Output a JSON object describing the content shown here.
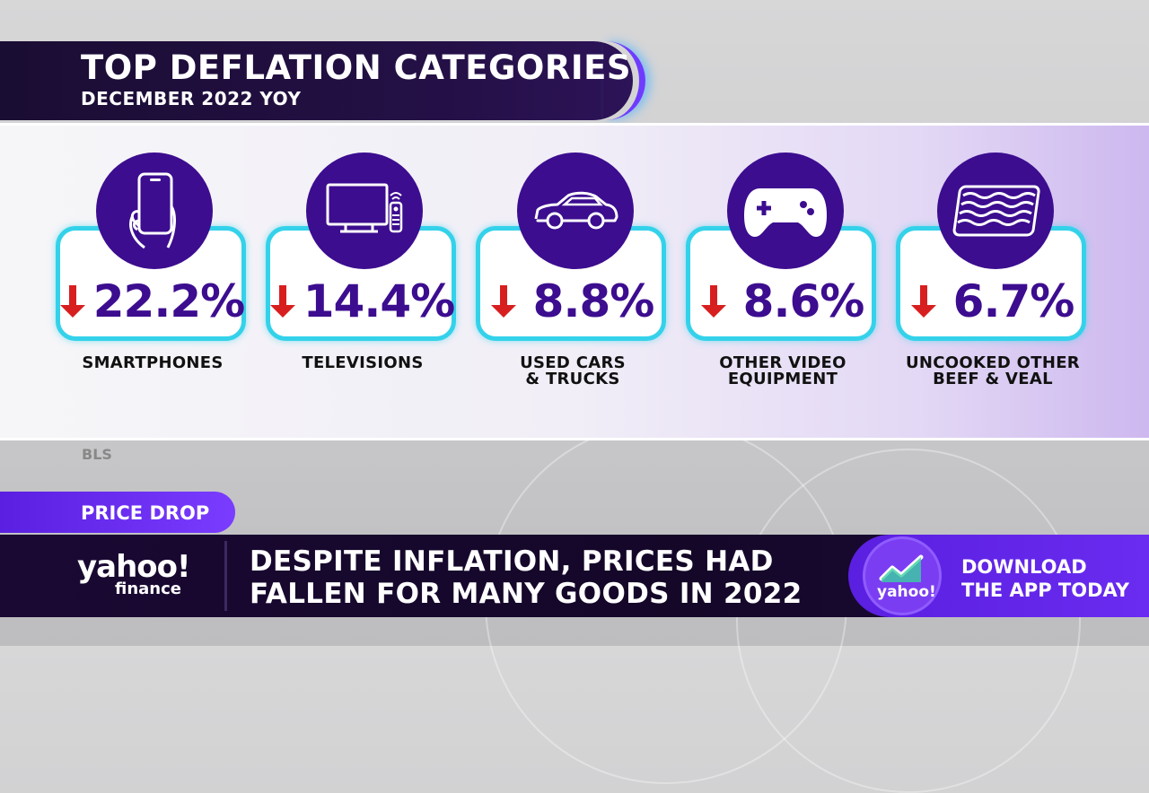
{
  "title": {
    "main": "TOP DEFLATION CATEGORIES",
    "sub": "DECEMBER 2022 YOY"
  },
  "colors": {
    "accent_purple": "#3c0d8f",
    "card_border": "#34d2ea",
    "arrow_red": "#d81f1f",
    "tag_purple": "#6a2cf0"
  },
  "categories": [
    {
      "icon": "smartphone-icon",
      "value": "22.2%",
      "label_line1": "SMARTPHONES",
      "label_line2": ""
    },
    {
      "icon": "television-icon",
      "value": "14.4%",
      "label_line1": "TELEVISIONS",
      "label_line2": ""
    },
    {
      "icon": "car-icon",
      "value": "8.8%",
      "label_line1": "USED CARS",
      "label_line2": "& TRUCKS"
    },
    {
      "icon": "game-controller-icon",
      "value": "8.6%",
      "label_line1": "OTHER VIDEO",
      "label_line2": "EQUIPMENT"
    },
    {
      "icon": "bacon-meat-icon",
      "value": "6.7%",
      "label_line1": "UNCOOKED OTHER",
      "label_line2": "BEEF & VEAL"
    }
  ],
  "source": "BLS",
  "lower_third": {
    "tag": "PRICE DROP",
    "logo_main": "yahoo!",
    "logo_sub": "finance",
    "headline_line1": "DESPITE INFLATION, PRICES HAD",
    "headline_line2": "FALLEN FOR MANY GOODS IN 2022",
    "app_logo": "yahoo!",
    "app_cta_line1": "DOWNLOAD",
    "app_cta_line2": "THE APP TODAY"
  }
}
